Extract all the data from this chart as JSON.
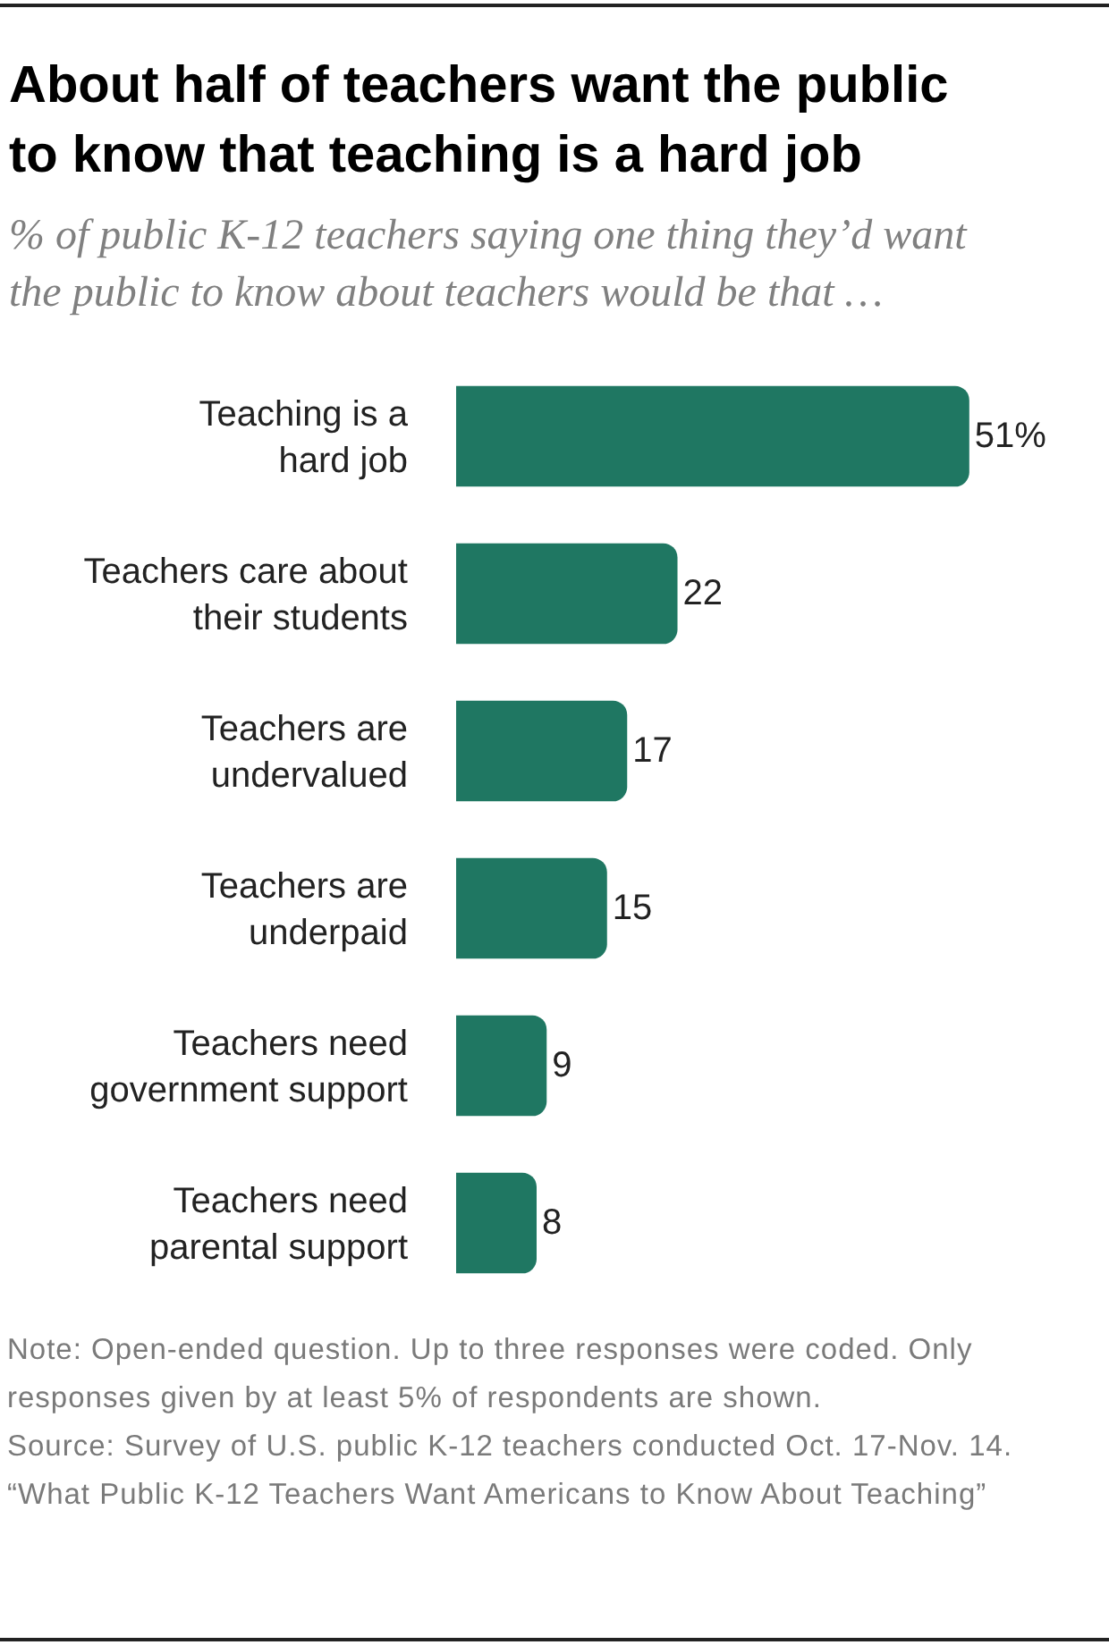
{
  "chart_data": {
    "type": "bar",
    "orientation": "horizontal",
    "title": "About half of teachers want the public to know that teaching is a hard job",
    "subtitle": "% of public K-12 teachers saying one thing they’d want the public to know about teachers would be that …",
    "categories": [
      "Teaching is a\nhard job",
      "Teachers care about\ntheir students",
      "Teachers are\nundervalued",
      "Teachers are\nunderpaid",
      "Teachers need\ngovernment support",
      "Teachers need\nparental support"
    ],
    "values": [
      51,
      22,
      17,
      15,
      9,
      8
    ],
    "value_labels": [
      "51%",
      "22",
      "17",
      "15",
      "9",
      "8"
    ],
    "color": "#1f7762",
    "tick_labels": "y",
    "annotations": [
      "Note: Open-ended question. Up to three responses were coded. Only responses given by at least 5% of respondents are shown.",
      "Source: Survey of U.S. public K-12 teachers conducted Oct. 17-Nov. 14.",
      "“What Public K-12 Teachers Want Americans to Know About Teaching”"
    ]
  }
}
